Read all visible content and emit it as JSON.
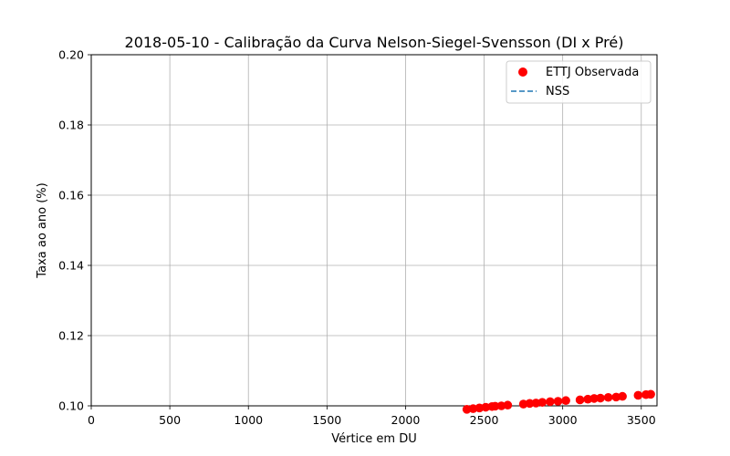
{
  "chart_data": {
    "type": "scatter",
    "title": "2018-05-10 - Calibração da Curva Nelson-Siegel-Svensson (DI x Pré)",
    "xlabel": "Vértice em DU",
    "ylabel": "Taxa ao ano (%)",
    "xlim": [
      0,
      3600
    ],
    "ylim": [
      0.1,
      0.2
    ],
    "xticks": [
      "0",
      "500",
      "1000",
      "1500",
      "2000",
      "2500",
      "3000",
      "3500"
    ],
    "xtick_values": [
      0,
      500,
      1000,
      1500,
      2000,
      2500,
      3000,
      3500
    ],
    "yticks": [
      "0.10",
      "0.12",
      "0.14",
      "0.16",
      "0.18",
      "0.20"
    ],
    "ytick_values": [
      0.1,
      0.12,
      0.14,
      0.16,
      0.18,
      0.2
    ],
    "grid": true,
    "legend_position": "top-right",
    "legend": [
      "ETTJ Observada",
      "NSS"
    ],
    "series": [
      {
        "name": "ETTJ Observada",
        "kind": "scatter",
        "color": "#ff0000",
        "x": [
          2390,
          2430,
          2470,
          2510,
          2550,
          2570,
          2610,
          2650,
          2750,
          2790,
          2830,
          2870,
          2920,
          2970,
          3020,
          3110,
          3160,
          3200,
          3240,
          3290,
          3340,
          3380,
          3480,
          3530,
          3560
        ],
        "y": [
          0.099,
          0.0992,
          0.0994,
          0.0996,
          0.0998,
          0.0999,
          0.1,
          0.1002,
          0.1005,
          0.1007,
          0.1008,
          0.101,
          0.1012,
          0.1013,
          0.1015,
          0.1017,
          0.1019,
          0.1021,
          0.1022,
          0.1024,
          0.1025,
          0.1027,
          0.103,
          0.1032,
          0.1033
        ]
      },
      {
        "name": "NSS",
        "kind": "line",
        "style": "dashed",
        "color": "#1f77b4",
        "x": [],
        "y": []
      }
    ]
  }
}
